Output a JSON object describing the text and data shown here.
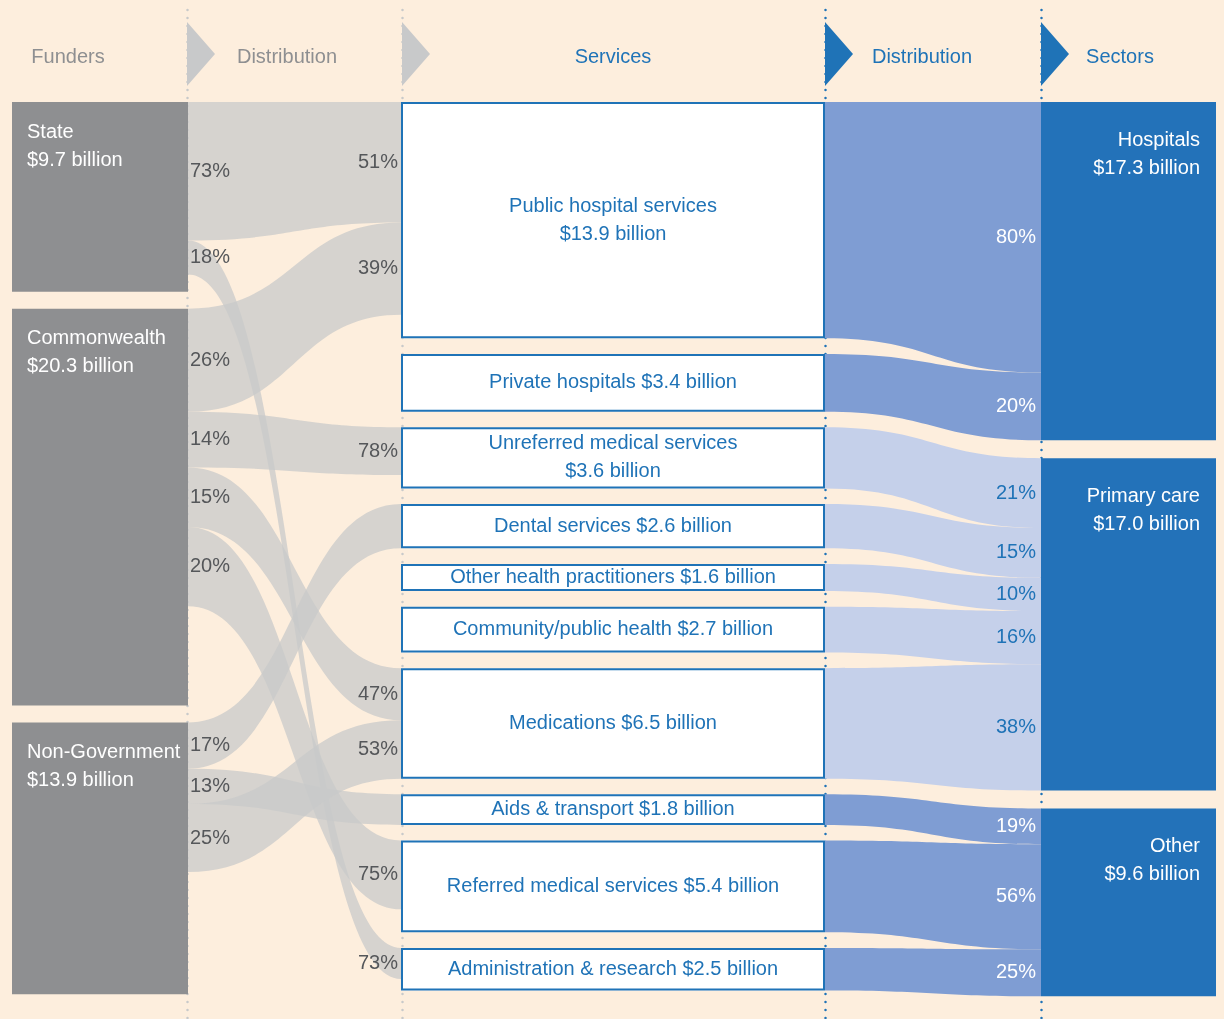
{
  "chart_data": {
    "type": "other",
    "categories": [
      "State",
      "Commonwealth",
      "Non-Government",
      "Public hospital services",
      "Private hospitals",
      "Unreferred medical services",
      "Dental services",
      "Other health practitioners",
      "Community/public health",
      "Medications",
      "Aids & transport",
      "Referred medical services",
      "Administration & research",
      "Hospitals",
      "Primary care",
      "Other"
    ],
    "values": [
      9.7,
      20.3,
      13.9,
      13.9,
      3.4,
      3.6,
      2.6,
      1.6,
      2.7,
      6.5,
      1.8,
      5.4,
      2.5,
      17.3,
      17.0,
      9.6
    ],
    "value_labels": [
      "$9.7 billion",
      "$20.3 billion",
      "$13.9 billion",
      "$13.9 billion",
      "$3.4 billion",
      "$3.6 billion",
      "$2.6 billion",
      "$1.6 billion",
      "$2.7 billion",
      "$6.5 billion",
      "$1.8 billion",
      "$5.4 billion",
      "$2.5 billion",
      "$17.3 billion",
      "$17.0 billion",
      "$9.6 billion"
    ],
    "annotations": [
      "Funders",
      "Distribution",
      "Services",
      "Distribution",
      "Sectors",
      "73%",
      "51%",
      "18%",
      "73%",
      "26%",
      "39%",
      "14%",
      "78%",
      "15%",
      "47%",
      "20%",
      "75%",
      "17%",
      "13%",
      "25%",
      "53%",
      "80%",
      "20%",
      "21%",
      "15%",
      "10%",
      "16%",
      "38%",
      "19%",
      "56%",
      "25%"
    ]
  }
}
